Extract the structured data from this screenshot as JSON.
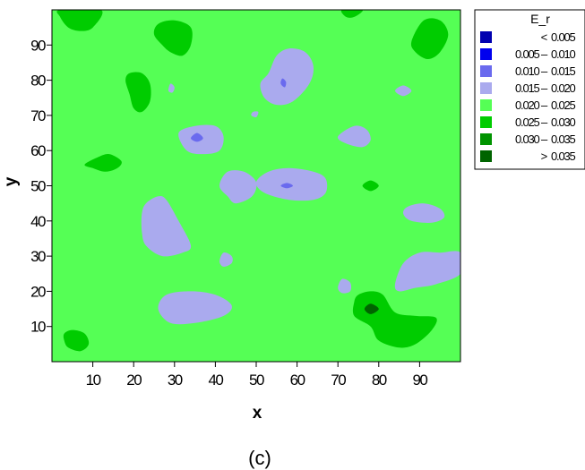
{
  "caption": "(c)",
  "chart_data": {
    "type": "contour",
    "xlabel": "x",
    "ylabel": "y",
    "xlim": [
      0,
      100
    ],
    "ylim": [
      0,
      100
    ],
    "xticks": [
      10,
      20,
      30,
      40,
      50,
      60,
      70,
      80,
      90
    ],
    "yticks": [
      10,
      20,
      30,
      40,
      50,
      60,
      70,
      80,
      90
    ],
    "background_level": "0.020 – 0.025",
    "legend": {
      "title": "E_r",
      "placement": "right",
      "entries": [
        {
          "left": "<",
          "right": "0.005",
          "color": "#0000b0"
        },
        {
          "left": "0.005 –",
          "right": "0.010",
          "color": "#0000ee"
        },
        {
          "left": "0.010 –",
          "right": "0.015",
          "color": "#6a6aee"
        },
        {
          "left": "0.015 –",
          "right": "0.020",
          "color": "#aaaaee"
        },
        {
          "left": "0.020 –",
          "right": "0.025",
          "color": "#55ff55"
        },
        {
          "left": "0.025 –",
          "right": "0.030",
          "color": "#00cc00"
        },
        {
          "left": "0.030 –",
          "right": "0.035",
          "color": "#009400"
        },
        {
          "left": ">",
          "right": "0.035",
          "color": "#006400"
        }
      ]
    },
    "regions": [
      {
        "level": "0.015 – 0.020",
        "points": [
          [
            53,
            82
          ],
          [
            55,
            87
          ],
          [
            58,
            89
          ],
          [
            62,
            88
          ],
          [
            64,
            84
          ],
          [
            63,
            79
          ],
          [
            59,
            74
          ],
          [
            55,
            73
          ],
          [
            52,
            75
          ],
          [
            51,
            79
          ]
        ]
      },
      {
        "level": "0.010 – 0.015",
        "points": [
          [
            56,
            79
          ],
          [
            57,
            78
          ],
          [
            57.3,
            79.5
          ],
          [
            56.4,
            80.5
          ]
        ]
      },
      {
        "level": "0.015 – 0.020",
        "points": [
          [
            28.5,
            77
          ],
          [
            29.5,
            76.5
          ],
          [
            30,
            78
          ],
          [
            29,
            79
          ]
        ]
      },
      {
        "level": "0.015 – 0.020",
        "points": [
          [
            48.8,
            70
          ],
          [
            50,
            69.5
          ],
          [
            50.5,
            71
          ],
          [
            49.2,
            71
          ]
        ]
      },
      {
        "level": "0.015 – 0.020",
        "points": [
          [
            84,
            77
          ],
          [
            86,
            75.5
          ],
          [
            88,
            77
          ],
          [
            86,
            78.5
          ]
        ]
      },
      {
        "level": "0.015 – 0.020",
        "points": [
          [
            31,
            65
          ],
          [
            33,
            60
          ],
          [
            37,
            59
          ],
          [
            41,
            60
          ],
          [
            42,
            64
          ],
          [
            40,
            67
          ],
          [
            35,
            67
          ]
        ]
      },
      {
        "level": "0.010 – 0.015",
        "points": [
          [
            34,
            63.5
          ],
          [
            35.5,
            62.5
          ],
          [
            37,
            63.5
          ],
          [
            35.5,
            65
          ]
        ]
      },
      {
        "level": "0.015 – 0.020",
        "points": [
          [
            70,
            64
          ],
          [
            72,
            62
          ],
          [
            76,
            61
          ],
          [
            78,
            63
          ],
          [
            77,
            66
          ],
          [
            74,
            67
          ]
        ]
      },
      {
        "level": "0.015 – 0.020",
        "points": [
          [
            41,
            50
          ],
          [
            43,
            47
          ],
          [
            45,
            45
          ],
          [
            49,
            47
          ],
          [
            50,
            51
          ],
          [
            47,
            54
          ],
          [
            43,
            54
          ]
        ]
      },
      {
        "level": "0.015 – 0.020",
        "points": [
          [
            50,
            51
          ],
          [
            52,
            48
          ],
          [
            58,
            46
          ],
          [
            64,
            46
          ],
          [
            67,
            48
          ],
          [
            67,
            52
          ],
          [
            64,
            54
          ],
          [
            58,
            55
          ],
          [
            53,
            54
          ]
        ]
      },
      {
        "level": "0.010 – 0.015",
        "points": [
          [
            56,
            50
          ],
          [
            57.5,
            49.3
          ],
          [
            59,
            50
          ],
          [
            57.5,
            50.8
          ]
        ]
      },
      {
        "level": "0.015 – 0.020",
        "points": [
          [
            86,
            42
          ],
          [
            88,
            40
          ],
          [
            93,
            39.5
          ],
          [
            96,
            41
          ],
          [
            95,
            43.5
          ],
          [
            91,
            45
          ],
          [
            87,
            44
          ]
        ]
      },
      {
        "level": "0.015 – 0.020",
        "points": [
          [
            22,
            42
          ],
          [
            23,
            45
          ],
          [
            26,
            47
          ],
          [
            28,
            46
          ],
          [
            31,
            40
          ],
          [
            34,
            33
          ],
          [
            32,
            31
          ],
          [
            27,
            30
          ],
          [
            23,
            33
          ],
          [
            22,
            37
          ]
        ]
      },
      {
        "level": "0.015 – 0.020",
        "points": [
          [
            41,
            28.5
          ],
          [
            42,
            27
          ],
          [
            44,
            28
          ],
          [
            44,
            30
          ],
          [
            42,
            31
          ]
        ]
      },
      {
        "level": "0.015 – 0.020",
        "points": [
          [
            84,
            22
          ],
          [
            86,
            28
          ],
          [
            90,
            31
          ],
          [
            95,
            31
          ],
          [
            100,
            31
          ],
          [
            100,
            25
          ],
          [
            94,
            22
          ],
          [
            89,
            21
          ],
          [
            85,
            20
          ]
        ]
      },
      {
        "level": "0.015 – 0.020",
        "points": [
          [
            70,
            21
          ],
          [
            71,
            19.5
          ],
          [
            73,
            20
          ],
          [
            73,
            22.5
          ],
          [
            71,
            23.5
          ]
        ]
      },
      {
        "level": "0.015 – 0.020",
        "points": [
          [
            26,
            15
          ],
          [
            28,
            19
          ],
          [
            34,
            20
          ],
          [
            40,
            19
          ],
          [
            44,
            16
          ],
          [
            42,
            13
          ],
          [
            35,
            11
          ],
          [
            29,
            11
          ]
        ]
      },
      {
        "level": "0.025 – 0.030",
        "points": [
          [
            2,
            98
          ],
          [
            4,
            95
          ],
          [
            7,
            94
          ],
          [
            10,
            95
          ],
          [
            12,
            100
          ],
          [
            2,
            100
          ]
        ]
      },
      {
        "level": "0.025 – 0.030",
        "points": [
          [
            25,
            93
          ],
          [
            27,
            90
          ],
          [
            29,
            88
          ],
          [
            32,
            87
          ],
          [
            34,
            90
          ],
          [
            34,
            95
          ],
          [
            30,
            97
          ],
          [
            26,
            96
          ]
        ]
      },
      {
        "level": "0.025 – 0.030",
        "points": [
          [
            71,
            100
          ],
          [
            72,
            98
          ],
          [
            74,
            98
          ],
          [
            76,
            100
          ]
        ]
      },
      {
        "level": "0.025 – 0.030",
        "points": [
          [
            88,
            91
          ],
          [
            89,
            88
          ],
          [
            92,
            86
          ],
          [
            95,
            88
          ],
          [
            97,
            93
          ],
          [
            95,
            97
          ],
          [
            91,
            97
          ]
        ]
      },
      {
        "level": "0.025 – 0.030",
        "points": [
          [
            18,
            80
          ],
          [
            19,
            76
          ],
          [
            20,
            72
          ],
          [
            22,
            71
          ],
          [
            24,
            74
          ],
          [
            24,
            79
          ],
          [
            22,
            82
          ],
          [
            19,
            82
          ]
        ]
      },
      {
        "level": "0.025 – 0.030",
        "points": [
          [
            8,
            56
          ],
          [
            11,
            58
          ],
          [
            14,
            59
          ],
          [
            17,
            57
          ],
          [
            16,
            55
          ],
          [
            13,
            54
          ],
          [
            10,
            55
          ]
        ]
      },
      {
        "level": "0.025 – 0.030",
        "points": [
          [
            76,
            50
          ],
          [
            78,
            48.5
          ],
          [
            80,
            50
          ],
          [
            78,
            51.5
          ]
        ]
      },
      {
        "level": "0.025 – 0.030",
        "points": [
          [
            74,
            17
          ],
          [
            75,
            19
          ],
          [
            78,
            20
          ],
          [
            81,
            19
          ],
          [
            84,
            14
          ],
          [
            89,
            13
          ],
          [
            94,
            12.5
          ],
          [
            93,
            9
          ],
          [
            89,
            5
          ],
          [
            85,
            4
          ],
          [
            80,
            6
          ],
          [
            78,
            10
          ],
          [
            74,
            13
          ]
        ]
      },
      {
        "level": "> 0.035",
        "points": [
          [
            76.5,
            15
          ],
          [
            78,
            13.5
          ],
          [
            80,
            15
          ],
          [
            78,
            16.5
          ]
        ]
      },
      {
        "level": "0.025 – 0.030",
        "points": [
          [
            3,
            6
          ],
          [
            4,
            4
          ],
          [
            7,
            3
          ],
          [
            9,
            5
          ],
          [
            8,
            8
          ],
          [
            5,
            9
          ],
          [
            3,
            8
          ]
        ]
      }
    ]
  }
}
